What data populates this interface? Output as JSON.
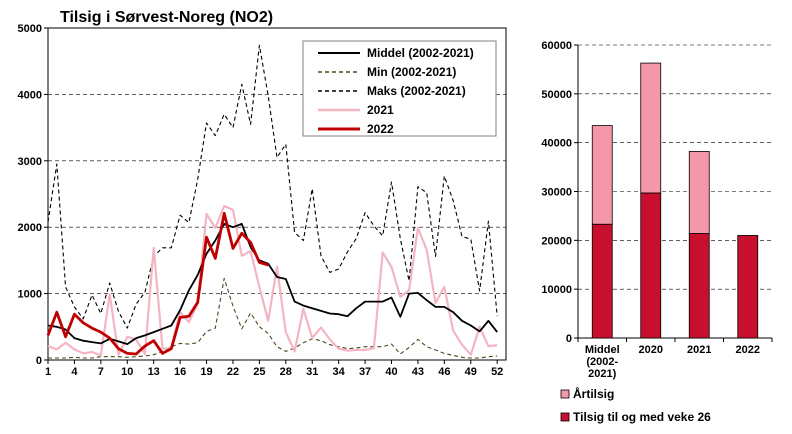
{
  "chart_data": [
    {
      "type": "line",
      "title": "Tilsig i Sørvest-Noreg (NO2)",
      "ylim": [
        0,
        5000
      ],
      "yticks": [
        0,
        1000,
        2000,
        3000,
        4000,
        5000
      ],
      "yticklabels": [
        "0",
        "1000",
        "2000",
        "3000",
        "4000",
        "5000"
      ],
      "xlim": [
        1,
        53
      ],
      "xticks": [
        1,
        4,
        7,
        10,
        13,
        16,
        19,
        22,
        25,
        28,
        31,
        34,
        37,
        40,
        43,
        46,
        49,
        52
      ],
      "xticklabels": [
        "1",
        "4",
        "7",
        "10",
        "13",
        "16",
        "19",
        "22",
        "25",
        "28",
        "31",
        "34",
        "37",
        "40",
        "43",
        "46",
        "49",
        "52"
      ],
      "grid": "horizontal dashed",
      "legend": "top-right",
      "series": [
        {
          "name": "Middel (2002-2021)",
          "color": "#000000",
          "style": "solid",
          "values": [
            520,
            500,
            460,
            330,
            290,
            270,
            250,
            320,
            280,
            240,
            330,
            370,
            420,
            470,
            520,
            750,
            1050,
            1280,
            1600,
            1800,
            2050,
            2000,
            2050,
            1700,
            1500,
            1450,
            1250,
            1220,
            880,
            820,
            780,
            740,
            700,
            690,
            660,
            780,
            880,
            880,
            880,
            940,
            650,
            1000,
            1010,
            900,
            800,
            800,
            720,
            590,
            520,
            430,
            590,
            420
          ]
        },
        {
          "name": "Min (2002-2021)",
          "color": "#4a4a1e",
          "style": "dashed",
          "values": [
            30,
            30,
            30,
            40,
            30,
            30,
            50,
            50,
            50,
            40,
            50,
            60,
            80,
            130,
            200,
            250,
            240,
            260,
            430,
            480,
            1230,
            810,
            470,
            710,
            500,
            400,
            200,
            130,
            180,
            260,
            320,
            290,
            230,
            200,
            170,
            180,
            200,
            200,
            200,
            240,
            90,
            190,
            310,
            200,
            150,
            100,
            70,
            40,
            30,
            30,
            50,
            60
          ]
        },
        {
          "name": "Maks (2002-2021)",
          "color": "#000000",
          "style": "dashed",
          "values": [
            2080,
            2950,
            1100,
            800,
            620,
            980,
            700,
            1160,
            730,
            480,
            840,
            1020,
            1560,
            1690,
            1690,
            2180,
            2070,
            2720,
            3570,
            3380,
            3700,
            3500,
            4150,
            3550,
            4740,
            3980,
            3050,
            3250,
            1920,
            1800,
            2580,
            1570,
            1320,
            1370,
            1630,
            1830,
            2220,
            2020,
            1870,
            2680,
            1830,
            1190,
            2610,
            2520,
            1560,
            2770,
            2400,
            1860,
            1820,
            1040,
            2090,
            660
          ]
        },
        {
          "name": "2021",
          "color": "#f4b5c3",
          "style": "solid",
          "values": [
            210,
            160,
            260,
            160,
            100,
            120,
            70,
            990,
            80,
            350,
            310,
            90,
            1690,
            170,
            180,
            720,
            570,
            850,
            2200,
            1990,
            2320,
            2260,
            1570,
            1640,
            1100,
            590,
            1400,
            420,
            130,
            770,
            330,
            490,
            310,
            170,
            140,
            150,
            150,
            180,
            1620,
            1400,
            950,
            1050,
            1990,
            1660,
            860,
            1100,
            440,
            230,
            80,
            500,
            210,
            220
          ]
        },
        {
          "name": "2022",
          "color": "#c00000",
          "style": "solid",
          "values": [
            370,
            720,
            350,
            690,
            560,
            480,
            420,
            330,
            170,
            100,
            90,
            210,
            290,
            100,
            170,
            640,
            660,
            870,
            1850,
            1530,
            2210,
            1680,
            1910,
            1770,
            1470,
            1430
          ]
        }
      ]
    },
    {
      "type": "bar",
      "stacked": true,
      "categories": [
        "Middel (2002-2021)",
        "2020",
        "2021",
        "2022"
      ],
      "category_labels": [
        [
          "Middel",
          "(2002-",
          "2021)"
        ],
        [
          "2020"
        ],
        [
          "2021"
        ],
        [
          "2022"
        ]
      ],
      "ylim": [
        0,
        60000
      ],
      "yticks": [
        0,
        10000,
        20000,
        30000,
        40000,
        50000,
        60000
      ],
      "yticklabels": [
        "0",
        "10000",
        "20000",
        "30000",
        "40000",
        "50000",
        "60000"
      ],
      "legend": "bottom",
      "series": [
        {
          "name": "Tilsig til og med veke  26",
          "color": "#c8102e",
          "values": [
            23300,
            29700,
            21400,
            21000
          ]
        },
        {
          "name": "Årtilsig",
          "color": "#f497a8",
          "values": [
            20200,
            26600,
            16800,
            0
          ]
        }
      ]
    }
  ]
}
